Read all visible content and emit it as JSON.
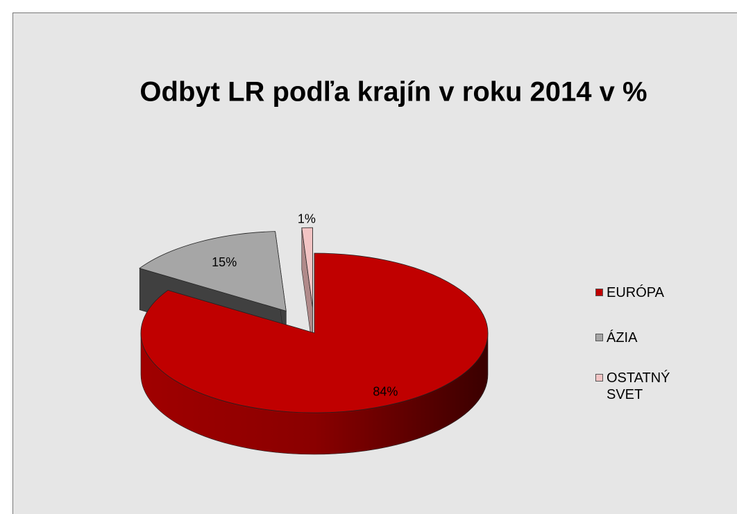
{
  "chart_data": {
    "type": "pie",
    "title": "Odbyt LR podľa krajín v roku 2014  v %",
    "categories": [
      "EURÓPA",
      "ÁZIA",
      "OSTATNÝ SVET"
    ],
    "values": [
      84,
      15,
      1
    ],
    "value_labels": [
      "84%",
      "15%",
      "1%"
    ],
    "colors": [
      "#c00000",
      "#a6a6a6",
      "#f2c4c4"
    ],
    "legend": "right"
  }
}
